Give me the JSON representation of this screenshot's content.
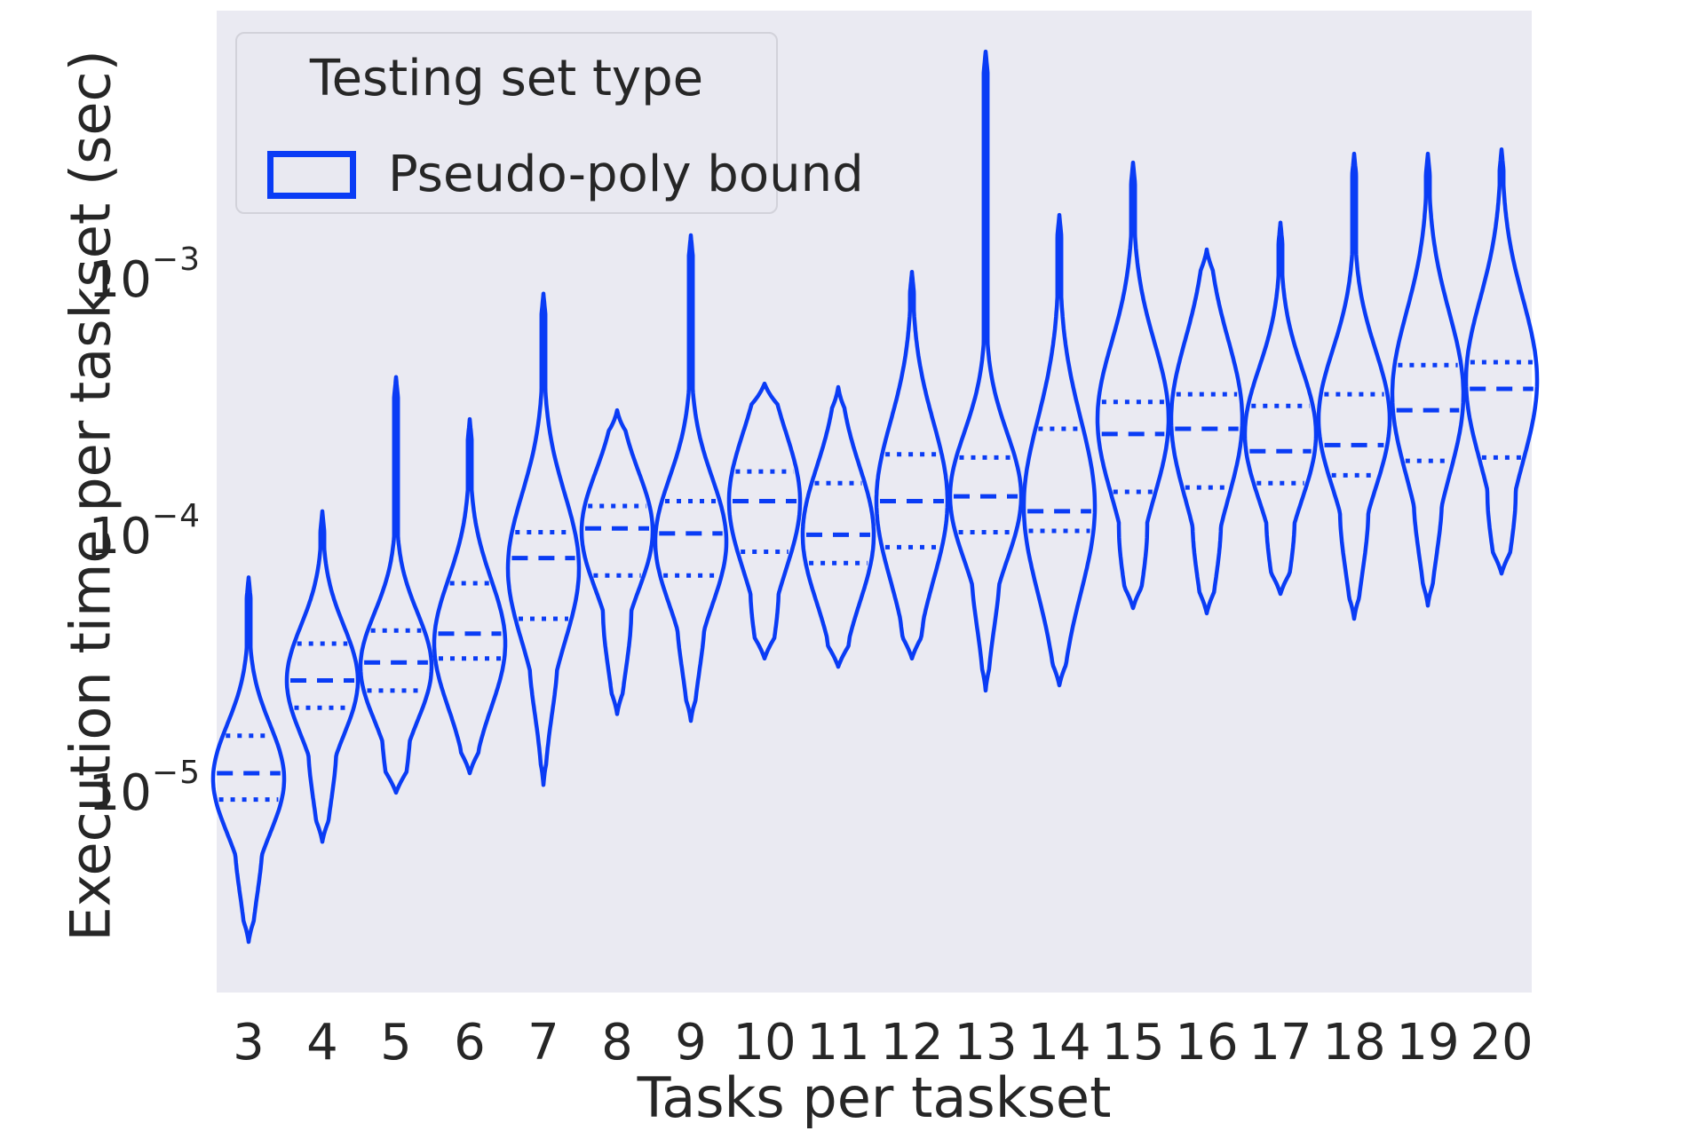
{
  "figure": {
    "ylabel": "Execution time per taskset (sec)",
    "xlabel": "Tasks per taskset",
    "legend": {
      "title": "Testing set type",
      "entries": [
        {
          "label": "Pseudo-poly bound",
          "color": "#0a3cf5"
        }
      ]
    },
    "colors": {
      "violin": "#0a3cf5",
      "plot_bg": "#eaeaf2",
      "text": "#262626",
      "legend_border": "#d2d2da"
    }
  },
  "chart_data": {
    "type": "violin",
    "title": "",
    "xlabel": "Tasks per taskset",
    "ylabel": "Execution time per taskset (sec)",
    "yscale": "log",
    "ylim": [
      1.5e-06,
      0.009
    ],
    "yticks": [
      0.001,
      0.0001,
      1e-05
    ],
    "grid": false,
    "legend_position": "upper left",
    "categories": [
      3,
      4,
      5,
      6,
      7,
      8,
      9,
      10,
      11,
      12,
      13,
      14,
      15,
      16,
      17,
      18,
      19,
      20
    ],
    "series": [
      {
        "tasks": 3,
        "min": 2.2e-06,
        "q1": 7.9e-06,
        "median": 1e-05,
        "q3": 1.4e-05,
        "max": 5.8e-05,
        "mode": 9.5e-06
      },
      {
        "tasks": 4,
        "min": 5.4e-06,
        "q1": 1.8e-05,
        "median": 2.3e-05,
        "q3": 3.2e-05,
        "max": 0.000105,
        "mode": 2.3e-05
      },
      {
        "tasks": 5,
        "min": 8.4e-06,
        "q1": 2.1e-05,
        "median": 2.7e-05,
        "q3": 3.6e-05,
        "max": 0.00035,
        "mode": 2.6e-05
      },
      {
        "tasks": 6,
        "min": 1e-05,
        "q1": 2.8e-05,
        "median": 3.5e-05,
        "q3": 5.5e-05,
        "max": 0.00024,
        "mode": 3.2e-05
      },
      {
        "tasks": 7,
        "min": 9e-06,
        "q1": 4e-05,
        "median": 6.9e-05,
        "q3": 8.7e-05,
        "max": 0.00074,
        "mode": 6.3e-05
      },
      {
        "tasks": 8,
        "min": 1.7e-05,
        "q1": 5.9e-05,
        "median": 9e-05,
        "q3": 0.00011,
        "max": 0.00026,
        "mode": 8.8e-05
      },
      {
        "tasks": 9,
        "min": 1.6e-05,
        "q1": 5.9e-05,
        "median": 8.6e-05,
        "q3": 0.000115,
        "max": 0.00125,
        "mode": 8e-05
      },
      {
        "tasks": 10,
        "min": 2.8e-05,
        "q1": 7.3e-05,
        "median": 0.000115,
        "q3": 0.00015,
        "max": 0.00033,
        "mode": 0.000115
      },
      {
        "tasks": 11,
        "min": 2.6e-05,
        "q1": 6.6e-05,
        "median": 8.5e-05,
        "q3": 0.000135,
        "max": 0.00032,
        "mode": 8.5e-05
      },
      {
        "tasks": 12,
        "min": 2.8e-05,
        "q1": 7.6e-05,
        "median": 0.000115,
        "q3": 0.000175,
        "max": 0.0009,
        "mode": 0.000115
      },
      {
        "tasks": 13,
        "min": 2.1e-05,
        "q1": 8.7e-05,
        "median": 0.00012,
        "q3": 0.00017,
        "max": 0.0065,
        "mode": 0.00012
      },
      {
        "tasks": 14,
        "min": 2.2e-05,
        "q1": 8.8e-05,
        "median": 0.000105,
        "q3": 0.00022,
        "max": 0.0015,
        "mode": 0.00011
      },
      {
        "tasks": 15,
        "min": 4.4e-05,
        "q1": 0.000125,
        "median": 0.00021,
        "q3": 0.00028,
        "max": 0.0024,
        "mode": 0.00024
      },
      {
        "tasks": 16,
        "min": 4.2e-05,
        "q1": 0.00013,
        "median": 0.00022,
        "q3": 0.0003,
        "max": 0.0011,
        "mode": 0.00024
      },
      {
        "tasks": 17,
        "min": 5e-05,
        "q1": 0.000135,
        "median": 0.00018,
        "q3": 0.00027,
        "max": 0.0014,
        "mode": 0.00021
      },
      {
        "tasks": 18,
        "min": 4e-05,
        "q1": 0.000145,
        "median": 0.00019,
        "q3": 0.0003,
        "max": 0.0026,
        "mode": 0.00024
      },
      {
        "tasks": 19,
        "min": 4.5e-05,
        "q1": 0.000165,
        "median": 0.00026,
        "q3": 0.00039,
        "max": 0.0026,
        "mode": 0.0003
      },
      {
        "tasks": 20,
        "min": 6e-05,
        "q1": 0.00017,
        "median": 0.000315,
        "q3": 0.0004,
        "max": 0.0027,
        "mode": 0.00034
      }
    ]
  }
}
